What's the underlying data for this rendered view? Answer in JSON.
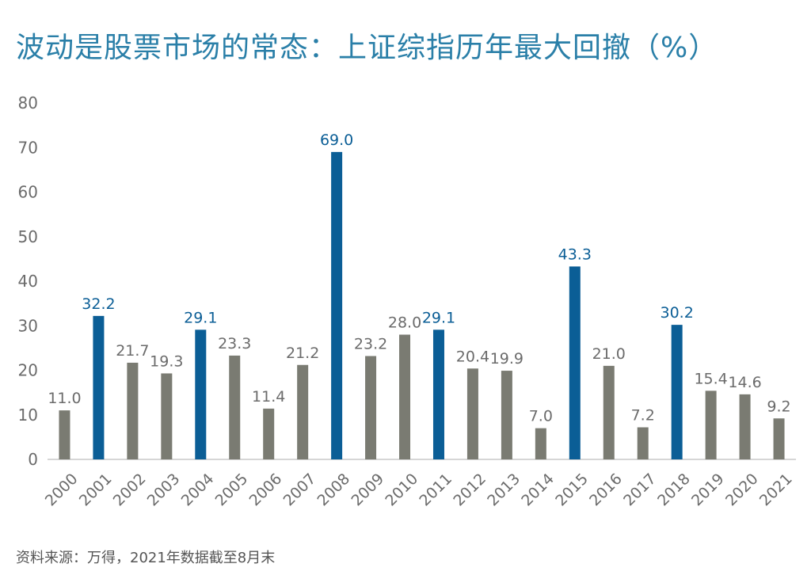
{
  "title": "波动是股票市场的常态：上证综指历年最大回撤（%）",
  "source": "资料来源：万得，2021年数据截至8月末",
  "colors": {
    "title": "#2a7fa8",
    "highlight": "#0b5e96",
    "normal": "#7a7b72",
    "axis": "#c8c8c8",
    "tick_text": "#6b6b6b"
  },
  "chart_data": {
    "type": "bar",
    "title": "波动是股票市场的常态：上证综指历年最大回撤（%）",
    "xlabel": "",
    "ylabel": "",
    "ylim": [
      0,
      80
    ],
    "yticks": [
      0,
      10,
      20,
      30,
      40,
      50,
      60,
      70,
      80
    ],
    "grid": false,
    "categories": [
      "2000",
      "2001",
      "2002",
      "2003",
      "2004",
      "2005",
      "2006",
      "2007",
      "2008",
      "2009",
      "2010",
      "2011",
      "2012",
      "2013",
      "2014",
      "2015",
      "2016",
      "2017",
      "2018",
      "2019",
      "2020",
      "2021"
    ],
    "values": [
      11.0,
      32.2,
      21.7,
      19.3,
      29.1,
      23.3,
      11.4,
      21.2,
      69.0,
      23.2,
      28.0,
      29.1,
      20.4,
      19.9,
      7.0,
      43.3,
      21.0,
      7.2,
      30.2,
      15.4,
      14.6,
      9.2
    ],
    "labels": [
      "11.0",
      "32.2",
      "21.7",
      "19.3",
      "29.1",
      "23.3",
      "11.4",
      "21.2",
      "69.0",
      "23.2",
      "28.0",
      "29.1",
      "20.4",
      "19.9",
      "7.0",
      "43.3",
      "21.0",
      "7.2",
      "30.2",
      "15.4",
      "14.6",
      "9.2"
    ],
    "highlighted": [
      "2001",
      "2004",
      "2008",
      "2011",
      "2015",
      "2018"
    ]
  }
}
